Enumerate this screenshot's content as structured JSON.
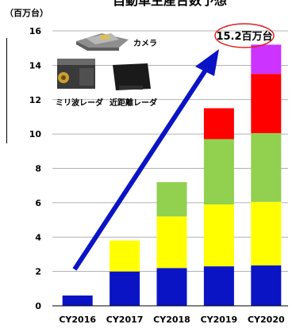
{
  "chart_data": {
    "type": "bar",
    "stacked": true,
    "title": "自動車生産台数予想",
    "unit_label": "（百万台）",
    "categories": [
      "CY2016",
      "CY2017",
      "CY2018",
      "CY2019",
      "CY2020"
    ],
    "ylim": [
      0,
      16
    ],
    "yticks": [
      0,
      2,
      4,
      6,
      8,
      10,
      12,
      14,
      16
    ],
    "grid": true,
    "series": [
      {
        "color": "#0a14c4",
        "values": [
          0.6,
          2.0,
          2.2,
          2.3,
          2.35
        ]
      },
      {
        "color": "#ffff00",
        "values": [
          0,
          1.8,
          3.0,
          3.6,
          3.7
        ]
      },
      {
        "color": "#92d050",
        "values": [
          0,
          0,
          2.0,
          3.8,
          4.0
        ]
      },
      {
        "color": "#ff0000",
        "values": [
          0,
          0,
          0,
          1.8,
          3.45
        ]
      },
      {
        "color": "#cc33ff",
        "values": [
          0,
          0,
          0,
          0,
          1.7
        ]
      }
    ],
    "annotations": {
      "total_2020": "15.2百万台",
      "camera": "カメラ",
      "mmwave_radar": "ミリ波レーダ",
      "short_range_radar": "近距離レーダ"
    }
  },
  "colors": {
    "arrow": "#0a14c4",
    "highlight_ellipse": "#e02020"
  }
}
